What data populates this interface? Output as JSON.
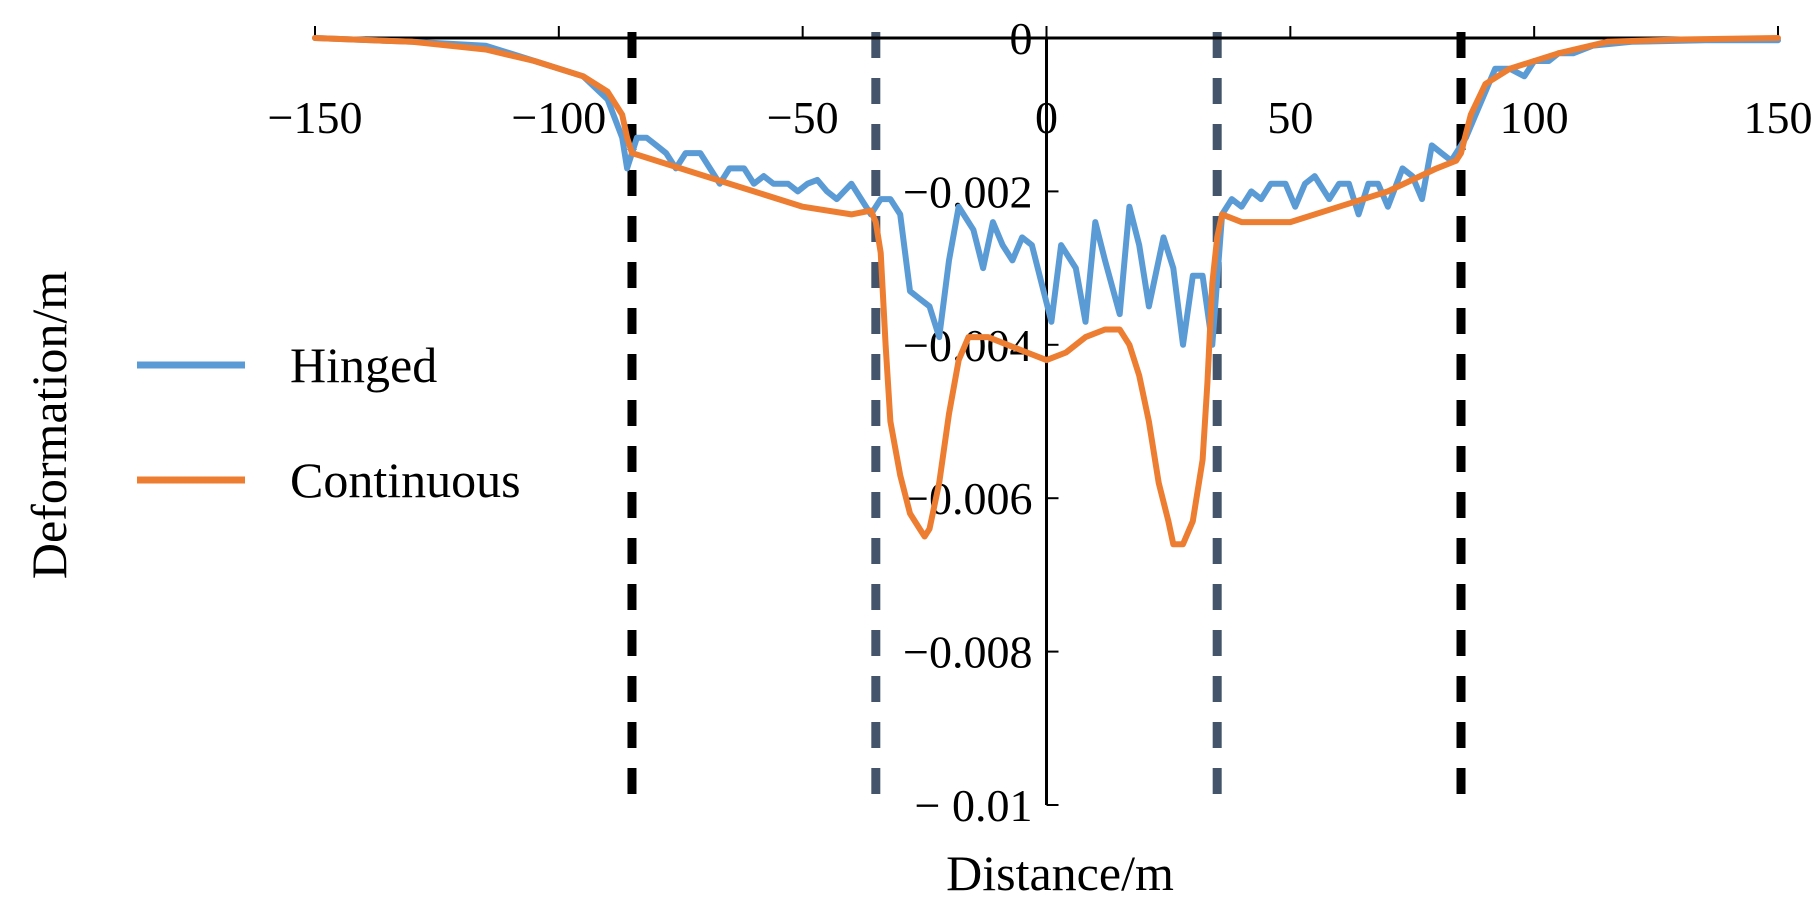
{
  "chart_data": {
    "type": "line",
    "title": "",
    "xlabel": "Distance/m",
    "ylabel": "Deformation/m",
    "xlim": [
      -150,
      150
    ],
    "ylim": [
      -0.01,
      0
    ],
    "x_ticks": [
      -150,
      -100,
      -50,
      0,
      50,
      100,
      150
    ],
    "x_tick_labels": [
      "−150",
      "−100",
      "−50",
      "0",
      "50",
      "100",
      "150"
    ],
    "y_ticks": [
      0,
      -0.002,
      -0.004,
      -0.006,
      -0.008,
      -0.01
    ],
    "y_tick_labels": [
      "0",
      "−0.002",
      "−0.004",
      "−0.006",
      "−0.008",
      "− 0.01"
    ],
    "grid": false,
    "legend_position": "left",
    "reference_lines": [
      {
        "x": -85,
        "color": "#000000",
        "style": "dashed"
      },
      {
        "x": -35,
        "color": "#44546a",
        "style": "dashed"
      },
      {
        "x": 35,
        "color": "#44546a",
        "style": "dashed"
      },
      {
        "x": 85,
        "color": "#000000",
        "style": "dashed"
      }
    ],
    "series": [
      {
        "name": "Hinged",
        "color": "#5b9bd5",
        "points": [
          [
            -150,
            0
          ],
          [
            -130,
            -5e-05
          ],
          [
            -115,
            -0.0001
          ],
          [
            -105,
            -0.0003
          ],
          [
            -95,
            -0.0005
          ],
          [
            -90,
            -0.0008
          ],
          [
            -87,
            -0.0013
          ],
          [
            -86,
            -0.0017
          ],
          [
            -84,
            -0.0013
          ],
          [
            -82,
            -0.0013
          ],
          [
            -80,
            -0.0014
          ],
          [
            -78,
            -0.0015
          ],
          [
            -76,
            -0.0017
          ],
          [
            -74,
            -0.0015
          ],
          [
            -71,
            -0.0015
          ],
          [
            -69,
            -0.0017
          ],
          [
            -67,
            -0.0019
          ],
          [
            -65,
            -0.0017
          ],
          [
            -62,
            -0.0017
          ],
          [
            -60,
            -0.0019
          ],
          [
            -58,
            -0.0018
          ],
          [
            -56,
            -0.0019
          ],
          [
            -53,
            -0.0019
          ],
          [
            -51,
            -0.002
          ],
          [
            -49,
            -0.0019
          ],
          [
            -47,
            -0.00185
          ],
          [
            -45,
            -0.002
          ],
          [
            -43,
            -0.0021
          ],
          [
            -40,
            -0.0019
          ],
          [
            -38,
            -0.0021
          ],
          [
            -36,
            -0.0023
          ],
          [
            -34,
            -0.0021
          ],
          [
            -32,
            -0.0021
          ],
          [
            -30,
            -0.0023
          ],
          [
            -28,
            -0.0033
          ],
          [
            -26,
            -0.0034
          ],
          [
            -24,
            -0.0035
          ],
          [
            -22,
            -0.0039
          ],
          [
            -20,
            -0.0029
          ],
          [
            -18,
            -0.0022
          ],
          [
            -15,
            -0.0025
          ],
          [
            -13,
            -0.003
          ],
          [
            -11,
            -0.0024
          ],
          [
            -9,
            -0.0027
          ],
          [
            -7,
            -0.0029
          ],
          [
            -5,
            -0.0026
          ],
          [
            -3,
            -0.0027
          ],
          [
            -1,
            -0.0032
          ],
          [
            1,
            -0.0037
          ],
          [
            3,
            -0.0027
          ],
          [
            6,
            -0.003
          ],
          [
            8,
            -0.0037
          ],
          [
            10,
            -0.0024
          ],
          [
            12,
            -0.0029
          ],
          [
            15,
            -0.0036
          ],
          [
            17,
            -0.0022
          ],
          [
            19,
            -0.0027
          ],
          [
            21,
            -0.0035
          ],
          [
            24,
            -0.0026
          ],
          [
            26,
            -0.003
          ],
          [
            28,
            -0.004
          ],
          [
            30,
            -0.0031
          ],
          [
            32,
            -0.0031
          ],
          [
            34,
            -0.004
          ],
          [
            36,
            -0.0023
          ],
          [
            38,
            -0.0021
          ],
          [
            40,
            -0.0022
          ],
          [
            42,
            -0.002
          ],
          [
            44,
            -0.0021
          ],
          [
            46,
            -0.0019
          ],
          [
            49,
            -0.0019
          ],
          [
            51,
            -0.0022
          ],
          [
            53,
            -0.0019
          ],
          [
            55,
            -0.0018
          ],
          [
            58,
            -0.0021
          ],
          [
            60,
            -0.0019
          ],
          [
            62,
            -0.0019
          ],
          [
            64,
            -0.0023
          ],
          [
            66,
            -0.0019
          ],
          [
            68,
            -0.0019
          ],
          [
            70,
            -0.0022
          ],
          [
            73,
            -0.0017
          ],
          [
            75,
            -0.0018
          ],
          [
            77,
            -0.0021
          ],
          [
            79,
            -0.0014
          ],
          [
            81,
            -0.0015
          ],
          [
            83,
            -0.0016
          ],
          [
            86,
            -0.0013
          ],
          [
            88,
            -0.001
          ],
          [
            90,
            -0.0007
          ],
          [
            92,
            -0.0004
          ],
          [
            95,
            -0.0004
          ],
          [
            98,
            -0.0005
          ],
          [
            100,
            -0.0003
          ],
          [
            103,
            -0.0003
          ],
          [
            105,
            -0.0002
          ],
          [
            108,
            -0.0002
          ],
          [
            112,
            -0.0001
          ],
          [
            120,
            -5e-05
          ],
          [
            135,
            -3e-05
          ],
          [
            150,
            -3e-05
          ]
        ]
      },
      {
        "name": "Continuous",
        "color": "#ed7d31",
        "points": [
          [
            -150,
            0
          ],
          [
            -130,
            -5e-05
          ],
          [
            -115,
            -0.00015
          ],
          [
            -105,
            -0.0003
          ],
          [
            -95,
            -0.0005
          ],
          [
            -90,
            -0.0007
          ],
          [
            -87,
            -0.001
          ],
          [
            -86,
            -0.0013
          ],
          [
            -85,
            -0.0015
          ],
          [
            -80,
            -0.0016
          ],
          [
            -70,
            -0.0018
          ],
          [
            -60,
            -0.002
          ],
          [
            -50,
            -0.0022
          ],
          [
            -40,
            -0.0023
          ],
          [
            -36,
            -0.00225
          ],
          [
            -35,
            -0.0024
          ],
          [
            -34,
            -0.0028
          ],
          [
            -33,
            -0.004
          ],
          [
            -32,
            -0.005
          ],
          [
            -30,
            -0.0057
          ],
          [
            -28,
            -0.0062
          ],
          [
            -26,
            -0.0064
          ],
          [
            -25,
            -0.0065
          ],
          [
            -24,
            -0.0064
          ],
          [
            -22,
            -0.0058
          ],
          [
            -20,
            -0.0049
          ],
          [
            -18,
            -0.0042
          ],
          [
            -16,
            -0.0039
          ],
          [
            -14,
            -0.0039
          ],
          [
            -12,
            -0.0039
          ],
          [
            -8,
            -0.004
          ],
          [
            -4,
            -0.0041
          ],
          [
            0,
            -0.0042
          ],
          [
            4,
            -0.0041
          ],
          [
            8,
            -0.0039
          ],
          [
            12,
            -0.0038
          ],
          [
            15,
            -0.0038
          ],
          [
            17,
            -0.004
          ],
          [
            19,
            -0.0044
          ],
          [
            21,
            -0.005
          ],
          [
            23,
            -0.0058
          ],
          [
            25,
            -0.0063
          ],
          [
            26,
            -0.0066
          ],
          [
            28,
            -0.0066
          ],
          [
            30,
            -0.0063
          ],
          [
            32,
            -0.0055
          ],
          [
            33,
            -0.0045
          ],
          [
            34,
            -0.0032
          ],
          [
            35,
            -0.0026
          ],
          [
            36,
            -0.0023
          ],
          [
            40,
            -0.0024
          ],
          [
            50,
            -0.0024
          ],
          [
            60,
            -0.0022
          ],
          [
            70,
            -0.002
          ],
          [
            80,
            -0.0017
          ],
          [
            84,
            -0.0016
          ],
          [
            85,
            -0.0015
          ],
          [
            87,
            -0.001
          ],
          [
            90,
            -0.0006
          ],
          [
            95,
            -0.0004
          ],
          [
            105,
            -0.0002
          ],
          [
            115,
            -5e-05
          ],
          [
            130,
            -2e-05
          ],
          [
            150,
            0
          ]
        ]
      }
    ]
  }
}
